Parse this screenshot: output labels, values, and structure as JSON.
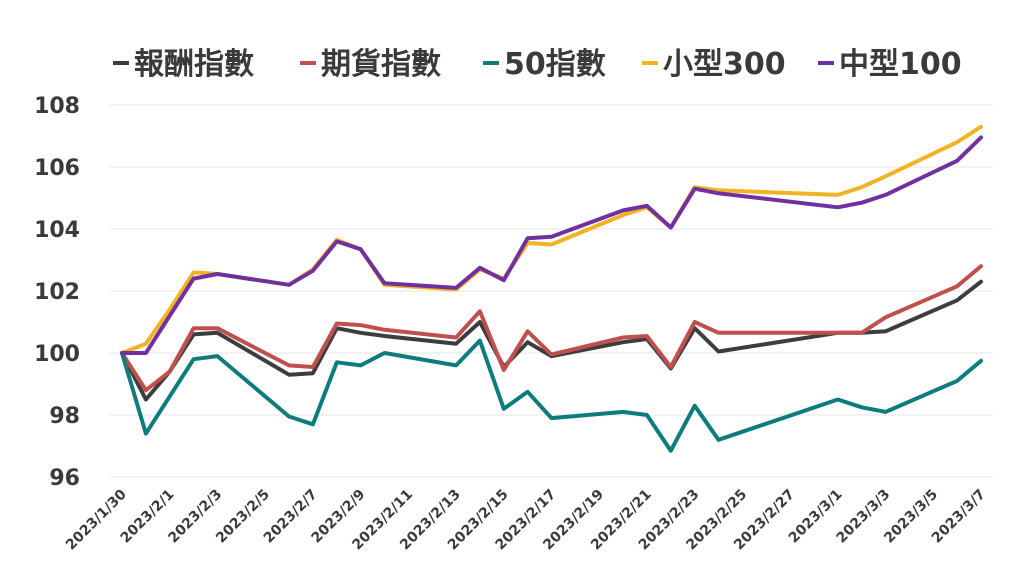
{
  "chart_data": {
    "type": "line",
    "title": "",
    "xlabel": "",
    "ylabel": "",
    "ylim": [
      96,
      108
    ],
    "yticks": [
      96,
      98,
      100,
      102,
      104,
      106,
      108
    ],
    "grid": "horizontal",
    "legend_position": "top",
    "x_ticks": [
      "2023/1/30",
      "2023/2/1",
      "2023/2/3",
      "2023/2/5",
      "2023/2/7",
      "2023/2/9",
      "2023/2/11",
      "2023/2/13",
      "2023/2/15",
      "2023/2/17",
      "2023/2/19",
      "2023/2/21",
      "2023/2/23",
      "2023/2/25",
      "2023/2/27",
      "2023/3/1",
      "2023/3/3",
      "2023/3/5",
      "2023/3/7"
    ],
    "x": [
      "2023/1/30",
      "2023/1/31",
      "2023/2/1",
      "2023/2/2",
      "2023/2/3",
      "2023/2/6",
      "2023/2/7",
      "2023/2/8",
      "2023/2/9",
      "2023/2/10",
      "2023/2/13",
      "2023/2/14",
      "2023/2/15",
      "2023/2/16",
      "2023/2/17",
      "2023/2/20",
      "2023/2/21",
      "2023/2/22",
      "2023/2/23",
      "2023/2/24",
      "2023/3/1",
      "2023/3/2",
      "2023/3/3",
      "2023/3/6",
      "2023/3/7"
    ],
    "series": [
      {
        "name": "報酬指數",
        "color": "#3d3d3d",
        "values": [
          100.0,
          98.5,
          99.4,
          100.6,
          100.65,
          99.3,
          99.35,
          100.8,
          100.65,
          100.55,
          100.3,
          101.0,
          99.55,
          100.35,
          99.9,
          100.35,
          100.45,
          99.5,
          100.8,
          100.05,
          100.65,
          100.65,
          100.7,
          101.7,
          102.3
        ]
      },
      {
        "name": "期貨指數",
        "color": "#c0504d",
        "values": [
          100.0,
          98.8,
          99.4,
          100.8,
          100.8,
          99.6,
          99.55,
          100.95,
          100.9,
          100.75,
          100.5,
          101.35,
          99.45,
          100.7,
          99.95,
          100.5,
          100.55,
          99.55,
          101.0,
          100.65,
          100.65,
          100.65,
          101.15,
          102.15,
          102.8
        ]
      },
      {
        "name": "50指數",
        "color": "#0e7c7b",
        "values": [
          100.0,
          97.4,
          98.6,
          99.8,
          99.9,
          97.95,
          97.7,
          99.7,
          99.6,
          100.0,
          99.6,
          100.4,
          98.2,
          98.75,
          97.9,
          98.1,
          98.0,
          96.85,
          98.3,
          97.2,
          98.5,
          98.25,
          98.1,
          99.1,
          99.75
        ]
      },
      {
        "name": "小型300",
        "color": "#f0b323",
        "values": [
          100.0,
          100.3,
          101.4,
          102.6,
          102.55,
          102.2,
          102.7,
          103.65,
          103.35,
          102.2,
          102.05,
          102.7,
          102.4,
          103.55,
          103.5,
          104.45,
          104.7,
          104.05,
          105.35,
          105.25,
          105.1,
          105.35,
          105.7,
          106.8,
          107.3
        ]
      },
      {
        "name": "中型100",
        "color": "#7030a0",
        "values": [
          100.0,
          100.0,
          101.2,
          102.4,
          102.55,
          102.2,
          102.65,
          103.6,
          103.35,
          102.25,
          102.1,
          102.75,
          102.35,
          103.7,
          103.75,
          104.6,
          104.75,
          104.05,
          105.3,
          105.15,
          104.7,
          104.85,
          105.1,
          106.2,
          106.95
        ]
      }
    ]
  }
}
